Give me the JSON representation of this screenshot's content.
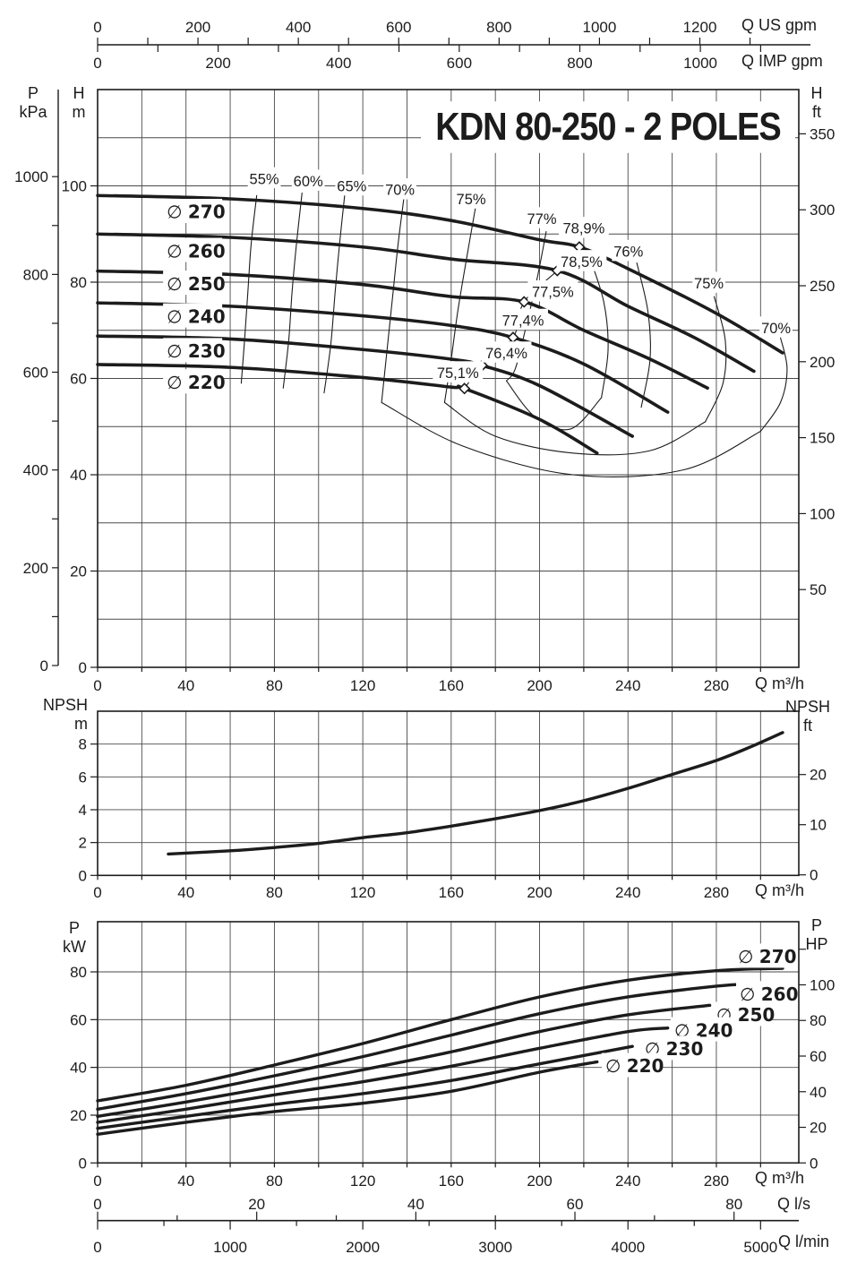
{
  "title": "KDN 80-250 - 2 POLES",
  "units": {
    "pressure_kpa": "P\nkPa",
    "head_m": "H\nm",
    "head_ft": "H\nft",
    "flow_m3h_top": "Q m³/h",
    "npsh_m": "NPSH\nm",
    "npsh_ft": "NPSH\nft",
    "flow_m3h_mid": "Q m³/h",
    "power_kw": "P\nkW",
    "power_hp": "P\nHP",
    "flow_m3h_bottom": "Q m³/h",
    "flow_us_gpm": "Q US gpm",
    "flow_imp_gpm": "Q IMP gpm",
    "flow_ls": "Q l/s",
    "flow_lmin": "Q l/min"
  },
  "flow_axes": {
    "us_gpm": {
      "label_ticks": [
        0,
        200,
        400,
        600,
        800,
        1000,
        1200
      ],
      "minor_step": 100,
      "max": 1300
    },
    "imp_gpm": {
      "label_ticks": [
        0,
        200,
        400,
        600,
        800,
        1000
      ],
      "minor_step": 100,
      "max": 1100
    },
    "l_s": {
      "label_ticks": [
        0,
        20,
        40,
        60,
        80
      ],
      "minor_step": 10,
      "max": 88
    },
    "l_min": {
      "label_ticks": [
        0,
        1000,
        2000,
        3000,
        4000,
        5000
      ],
      "minor_step": 500,
      "max": 5250
    }
  },
  "chart_data": [
    {
      "id": "head-flow",
      "type": "line",
      "title": "KDN 80-250 - 2 POLES",
      "xlabel": "Q m³/h",
      "ylabel_left": [
        "P kPa",
        "H m"
      ],
      "ylabel_right": "H ft",
      "x_range": [
        0,
        317
      ],
      "y_range": [
        0,
        120
      ],
      "grid": true,
      "x_ticks": [
        0,
        40,
        80,
        120,
        160,
        200,
        240,
        280
      ],
      "y_ticks_m": [
        0,
        20,
        40,
        60,
        80,
        100
      ],
      "y_ticks_kpa": [
        0,
        200,
        400,
        600,
        800,
        1000
      ],
      "y_ticks_ft": [
        50,
        100,
        150,
        200,
        250,
        300,
        350
      ],
      "series": [
        {
          "name": "∅ 270",
          "label_pos": [
            43,
            94.6
          ],
          "points": [
            [
              0,
              98
            ],
            [
              60,
              97.3
            ],
            [
              120,
              95.3
            ],
            [
              160,
              92.8
            ],
            [
              200,
              88.8
            ],
            [
              218,
              87.3
            ],
            [
              240,
              82.8
            ],
            [
              280,
              73.5
            ],
            [
              310,
              65.3
            ]
          ],
          "bep": {
            "label": "78,9%",
            "point": [
              218,
              87.3
            ],
            "label_pos": [
              220,
              91.2
            ]
          }
        },
        {
          "name": "∅ 260",
          "label_pos": [
            43,
            86.5
          ],
          "points": [
            [
              0,
              90
            ],
            [
              60,
              89.3
            ],
            [
              120,
              87.3
            ],
            [
              160,
              84.8
            ],
            [
              208,
              82.4
            ],
            [
              240,
              75
            ],
            [
              270,
              68.5
            ],
            [
              297,
              61.5
            ]
          ],
          "bep": {
            "label": "78,5%",
            "point": [
              208,
              82.4
            ],
            "label_pos": [
              219,
              84.3
            ]
          }
        },
        {
          "name": "∅ 250",
          "label_pos": [
            43,
            79.7
          ],
          "points": [
            [
              0,
              82.3
            ],
            [
              60,
              81.6
            ],
            [
              120,
              79.5
            ],
            [
              160,
              77
            ],
            [
              193,
              75.9
            ],
            [
              220,
              70
            ],
            [
              250,
              64
            ],
            [
              276,
              58
            ]
          ],
          "bep": {
            "label": "77,5%",
            "point": [
              193,
              75.9
            ],
            "label_pos": [
              206,
              78
            ]
          }
        },
        {
          "name": "∅ 240",
          "label_pos": [
            43,
            72.9
          ],
          "points": [
            [
              0,
              75.7
            ],
            [
              60,
              75
            ],
            [
              120,
              73
            ],
            [
              160,
              71
            ],
            [
              188,
              68.5
            ],
            [
              220,
              63
            ],
            [
              258,
              53
            ]
          ],
          "bep": {
            "label": "77,4%",
            "point": [
              188,
              68.5
            ],
            "label_pos": [
              192.5,
              72.1
            ]
          }
        },
        {
          "name": "∅ 230",
          "label_pos": [
            43,
            65.7
          ],
          "points": [
            [
              0,
              68.8
            ],
            [
              60,
              68.2
            ],
            [
              120,
              66
            ],
            [
              160,
              64
            ],
            [
              174,
              62.7
            ],
            [
              200,
              58.5
            ],
            [
              242,
              48
            ]
          ],
          "bep": {
            "label": "76,4%",
            "point": [
              174,
              62.7
            ],
            "label_pos": [
              185,
              65.3
            ]
          }
        },
        {
          "name": "∅ 220",
          "label_pos": [
            43,
            59.2
          ],
          "points": [
            [
              0,
              62.9
            ],
            [
              60,
              62.3
            ],
            [
              120,
              60.2
            ],
            [
              160,
              58.2
            ],
            [
              166,
              57.9
            ],
            [
              200,
              51.5
            ],
            [
              226,
              44.5
            ]
          ],
          "bep": {
            "label": "75,1%",
            "point": [
              166,
              57.9
            ],
            "label_pos": [
              163,
              61.2
            ]
          }
        }
      ],
      "contours": [
        {
          "label": "55%",
          "label_pos": [
            75.4,
            101.5
          ],
          "points": [
            [
              72,
              98
            ],
            [
              69.5,
              88
            ],
            [
              68,
              78
            ],
            [
              66.5,
              68
            ],
            [
              65,
              59
            ]
          ]
        },
        {
          "label": "60%",
          "label_pos": [
            95.3,
            101
          ],
          "points": [
            [
              92.5,
              98.5
            ],
            [
              90,
              88
            ],
            [
              88,
              78
            ],
            [
              86.5,
              68
            ],
            [
              84,
              58
            ]
          ]
        },
        {
          "label": "65%",
          "label_pos": [
            115,
            100
          ],
          "points": [
            [
              112,
              98.9
            ],
            [
              109.5,
              88
            ],
            [
              107.5,
              78
            ],
            [
              105.5,
              67
            ],
            [
              102.5,
              57
            ]
          ]
        },
        {
          "label": "70%",
          "label_pos": [
            136.8,
            99.2
          ],
          "points": [
            [
              139,
              98.9
            ],
            [
              136,
              88
            ],
            [
              133.5,
              77
            ],
            [
              131,
              66
            ],
            [
              128.5,
              55
            ]
          ]
        },
        {
          "label": "75%",
          "label_pos": [
            169,
            97.3
          ],
          "points": [
            [
              171,
              95.5
            ],
            [
              167,
              85
            ],
            [
              163,
              74
            ],
            [
              160,
              64
            ],
            [
              157,
              55
            ]
          ]
        },
        {
          "label": "77%",
          "label_pos": [
            201,
            93.2
          ],
          "points": [
            [
              203,
              90.5
            ],
            [
              199,
              81
            ],
            [
              194,
              71
            ],
            [
              189,
              62
            ],
            [
              185,
              59.5
            ]
          ]
        },
        {
          "label": "76%",
          "label_pos": [
            240.2,
            86.4
          ],
          "points": [
            [
              244,
              84
            ],
            [
              249,
              74
            ],
            [
              250,
              64
            ],
            [
              246,
              54
            ]
          ]
        },
        {
          "label": "75%",
          "label_pos": [
            276.6,
            79.8
          ],
          "points": [
            [
              279,
              77
            ],
            [
              284,
              68
            ],
            [
              283,
              59
            ],
            [
              275,
              51
            ]
          ]
        },
        {
          "label": "70%",
          "label_pos": [
            307,
            70.5
          ],
          "points": [
            [
              309,
              68.5
            ],
            [
              312,
              62
            ],
            [
              309,
              55
            ],
            [
              300,
              49
            ]
          ]
        },
        {
          "label": "",
          "points": [
            [
              222,
              86
            ],
            [
              229,
              76
            ],
            [
              231,
              66
            ],
            [
              228,
              56
            ]
          ]
        },
        {
          "label": "",
          "points": [
            [
              185,
              59.5
            ],
            [
              198,
              52
            ],
            [
              214,
              49.5
            ],
            [
              228,
              56
            ]
          ]
        },
        {
          "label": "",
          "points": [
            [
              157,
              55
            ],
            [
              180,
              48
            ],
            [
              215,
              44.5
            ],
            [
              250,
              45
            ],
            [
              275,
              51
            ]
          ]
        },
        {
          "label": "",
          "points": [
            [
              128.5,
              55
            ],
            [
              165,
              46
            ],
            [
              215,
              40
            ],
            [
              265,
              41
            ],
            [
              300,
              49
            ]
          ]
        },
        {
          "label": "",
          "points": [
            [
              166,
              57.9
            ],
            [
              174,
              62.7
            ],
            [
              188,
              68.5
            ],
            [
              193,
              75.9
            ],
            [
              208,
              82.4
            ],
            [
              218,
              87.3
            ]
          ]
        }
      ]
    },
    {
      "id": "npsh",
      "type": "line",
      "xlabel": "Q m³/h",
      "ylabel_left": "NPSH m",
      "ylabel_right": "NPSH ft",
      "x_range": [
        0,
        317
      ],
      "y_range": [
        0,
        10
      ],
      "grid": true,
      "x_ticks": [
        0,
        40,
        80,
        120,
        160,
        200,
        240,
        280
      ],
      "y_ticks_m": [
        0,
        2,
        4,
        6,
        8
      ],
      "y_ticks_ft": [
        0,
        10,
        20
      ],
      "series": [
        {
          "name": "NPSH",
          "points": [
            [
              32,
              1.3
            ],
            [
              60,
              1.5
            ],
            [
              80,
              1.7
            ],
            [
              100,
              1.95
            ],
            [
              120,
              2.3
            ],
            [
              140,
              2.6
            ],
            [
              160,
              3
            ],
            [
              180,
              3.45
            ],
            [
              200,
              3.95
            ],
            [
              220,
              4.55
            ],
            [
              240,
              5.3
            ],
            [
              260,
              6.15
            ],
            [
              280,
              7
            ],
            [
              295,
              7.8
            ],
            [
              310,
              8.7
            ]
          ]
        }
      ]
    },
    {
      "id": "power",
      "type": "line",
      "xlabel": "Q m³/h",
      "ylabel_left": "P kW",
      "ylabel_right": "P HP",
      "x_range": [
        0,
        317
      ],
      "y_range": [
        0,
        101
      ],
      "grid": true,
      "x_ticks": [
        0,
        40,
        80,
        120,
        160,
        200,
        240,
        280
      ],
      "y_ticks_kw": [
        0,
        20,
        40,
        60,
        80
      ],
      "y_ticks_hp": [
        0,
        20,
        40,
        60,
        80,
        100
      ],
      "y_ticks_hp_unlabeled": [
        120
      ],
      "series": [
        {
          "name": "∅ 270",
          "label_pos": [
            301.5,
            86.4
          ],
          "points": [
            [
              0,
              26
            ],
            [
              40,
              32.5
            ],
            [
              80,
              41
            ],
            [
              120,
              50
            ],
            [
              160,
              60
            ],
            [
              200,
              69.5
            ],
            [
              240,
              76.5
            ],
            [
              280,
              80.5
            ],
            [
              310,
              81.5
            ]
          ]
        },
        {
          "name": "∅ 260",
          "label_pos": [
            302.3,
            70.7
          ],
          "points": [
            [
              0,
              22.5
            ],
            [
              40,
              29
            ],
            [
              80,
              36.5
            ],
            [
              120,
              44.5
            ],
            [
              160,
              53.5
            ],
            [
              200,
              62.5
            ],
            [
              240,
              69.5
            ],
            [
              280,
              74
            ],
            [
              297,
              75
            ]
          ]
        },
        {
          "name": "∅ 250",
          "label_pos": [
            291.7,
            62
          ],
          "points": [
            [
              0,
              19.5
            ],
            [
              40,
              25.5
            ],
            [
              80,
              32
            ],
            [
              120,
              39
            ],
            [
              160,
              46.5
            ],
            [
              200,
              55
            ],
            [
              240,
              62
            ],
            [
              277,
              66
            ]
          ]
        },
        {
          "name": "∅ 240",
          "label_pos": [
            272.7,
            55.6
          ],
          "points": [
            [
              0,
              17
            ],
            [
              40,
              22.5
            ],
            [
              80,
              28.5
            ],
            [
              120,
              34
            ],
            [
              160,
              40.5
            ],
            [
              200,
              48
            ],
            [
              240,
              55
            ],
            [
              258,
              56.5
            ]
          ]
        },
        {
          "name": "∅ 230",
          "label_pos": [
            259.3,
            47.8
          ],
          "points": [
            [
              0,
              14.5
            ],
            [
              40,
              19.5
            ],
            [
              80,
              24.5
            ],
            [
              120,
              29
            ],
            [
              160,
              34.5
            ],
            [
              200,
              41.5
            ],
            [
              242,
              48.8
            ]
          ]
        },
        {
          "name": "∅ 220",
          "label_pos": [
            241.5,
            40.6
          ],
          "points": [
            [
              0,
              12
            ],
            [
              40,
              17
            ],
            [
              80,
              21.5
            ],
            [
              120,
              25
            ],
            [
              160,
              30
            ],
            [
              200,
              38
            ],
            [
              226,
              42.3
            ]
          ]
        }
      ]
    }
  ]
}
